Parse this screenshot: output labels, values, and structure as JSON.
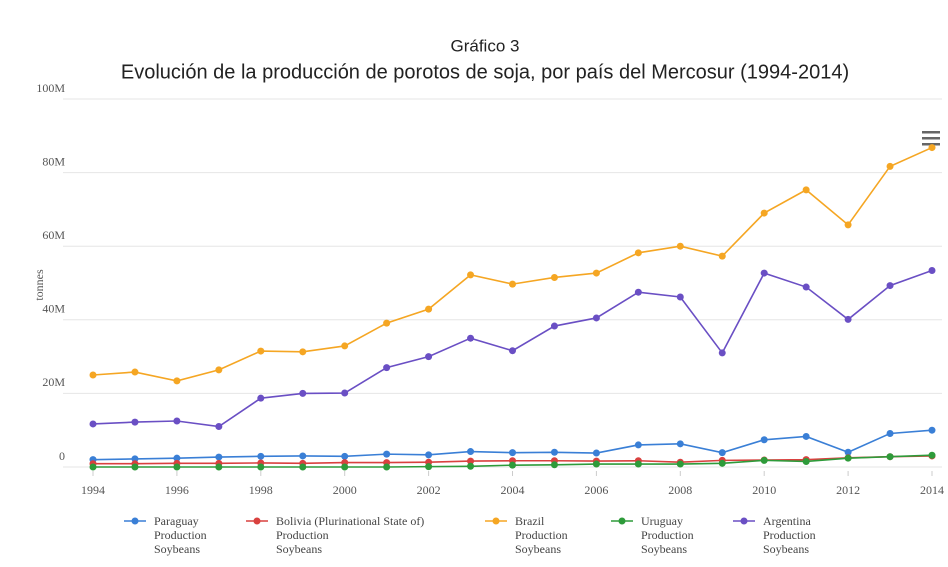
{
  "chart_data": {
    "type": "line",
    "title": "Gráfico 3",
    "subtitle": "Evolución de la producción de porotos de soja, por país del Mercosur (1994-2014)",
    "ylabel": "tonnes",
    "x": [
      1994,
      1995,
      1996,
      1997,
      1998,
      1999,
      2000,
      2001,
      2002,
      2003,
      2004,
      2005,
      2006,
      2007,
      2008,
      2009,
      2010,
      2011,
      2012,
      2013,
      2014
    ],
    "xlim": [
      1994,
      2014
    ],
    "xticks": [
      1994,
      1996,
      1998,
      2000,
      2002,
      2004,
      2006,
      2008,
      2010,
      2012,
      2014
    ],
    "ylim": [
      0,
      100000000
    ],
    "yticks": [
      0,
      {
        "value": 20000000,
        "label": "20M"
      },
      {
        "value": 40000000,
        "label": "40M"
      },
      {
        "value": 60000000,
        "label": "60M"
      },
      {
        "value": 80000000,
        "label": "80M"
      },
      {
        "value": 100000000,
        "label": "100M"
      }
    ],
    "grid": true,
    "legend": "bottom",
    "series": [
      {
        "name": "Paraguay\nProduction\nSoybeans",
        "color": "#3a7fd6",
        "values": [
          2000000,
          2200000,
          2400000,
          2700000,
          2900000,
          3000000,
          2900000,
          3500000,
          3300000,
          4200000,
          3900000,
          4000000,
          3800000,
          6000000,
          6300000,
          3900000,
          7400000,
          8300000,
          4000000,
          9100000,
          10000000
        ]
      },
      {
        "name": "Bolivia (Plurinational State of)\nProduction\nSoybeans",
        "color": "#d9413f",
        "values": [
          900000,
          900000,
          1000000,
          1000000,
          1100000,
          1000000,
          1200000,
          1200000,
          1300000,
          1600000,
          1700000,
          1700000,
          1600000,
          1700000,
          1300000,
          1800000,
          1900000,
          2000000,
          2500000,
          2800000,
          3000000
        ]
      },
      {
        "name": "Brazil\nProduction\nSoybeans",
        "color": "#f5a623",
        "values": [
          25000000,
          25800000,
          23400000,
          26400000,
          31500000,
          31300000,
          32900000,
          39100000,
          42900000,
          52200000,
          49700000,
          51500000,
          52700000,
          58200000,
          60000000,
          57300000,
          69000000,
          75300000,
          65800000,
          81700000,
          86800000
        ]
      },
      {
        "name": "Uruguay\nProduction\nSoybeans",
        "color": "#2e9b3a",
        "values": [
          0,
          0,
          0,
          0,
          0,
          0,
          0,
          0,
          100000,
          200000,
          500000,
          600000,
          800000,
          800000,
          800000,
          1000000,
          1800000,
          1500000,
          2400000,
          2800000,
          3200000
        ]
      },
      {
        "name": "Argentina\nProduction\nSoybeans",
        "color": "#6a4fc4",
        "values": [
          11700000,
          12200000,
          12500000,
          11000000,
          18700000,
          20000000,
          20100000,
          27000000,
          30000000,
          35000000,
          31600000,
          38300000,
          40500000,
          47500000,
          46200000,
          31000000,
          52700000,
          48900000,
          40100000,
          49300000,
          53400000
        ]
      }
    ]
  }
}
